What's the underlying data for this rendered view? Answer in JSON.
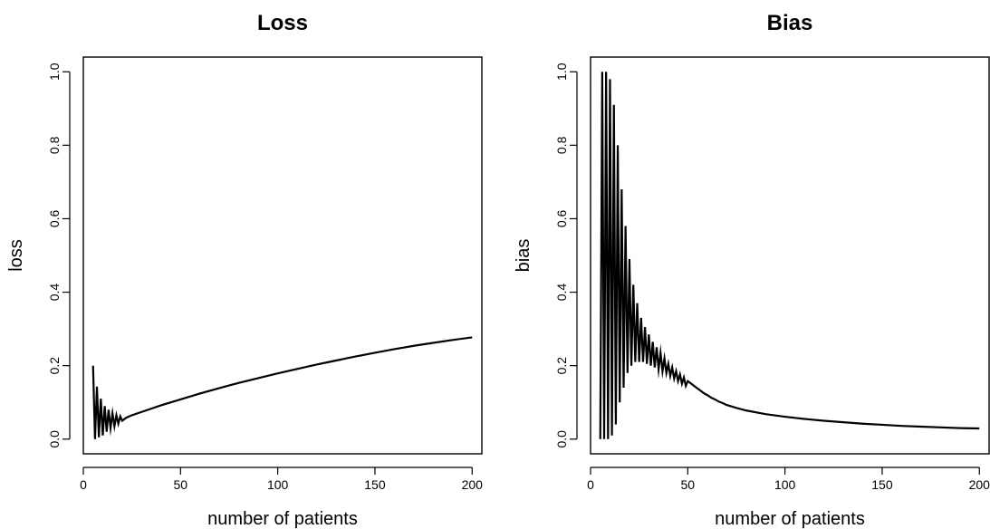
{
  "colors": {
    "background": "#ffffff",
    "line": "#000000",
    "frame": "#000000"
  },
  "chart_data": [
    {
      "type": "line",
      "title": "Loss",
      "xlabel": "number of patients",
      "ylabel": "loss",
      "xlim": [
        0,
        205
      ],
      "ylim": [
        0,
        1.0
      ],
      "xticks": [
        0,
        50,
        100,
        150,
        200
      ],
      "yticks": [
        0.0,
        0.2,
        0.4,
        0.6,
        0.8,
        1.0
      ],
      "xtick_labels": [
        "0",
        "50",
        "100",
        "150",
        "200"
      ],
      "ytick_labels": [
        "0.0",
        "0.2",
        "0.4",
        "0.6",
        "0.8",
        "1.0"
      ],
      "grid": false,
      "legend": "none",
      "series": [
        {
          "x": [
            5,
            6,
            7,
            8,
            9,
            10,
            11,
            12,
            13,
            14,
            15,
            16,
            17,
            18,
            19,
            20,
            22,
            25,
            30,
            40,
            50,
            60,
            70,
            80,
            90,
            100,
            110,
            120,
            130,
            140,
            150,
            160,
            170,
            180,
            190,
            200
          ],
          "y": [
            0.2,
            0.0,
            0.143,
            0.005,
            0.11,
            0.01,
            0.09,
            0.02,
            0.08,
            0.03,
            0.07,
            0.035,
            0.065,
            0.042,
            0.062,
            0.05,
            0.058,
            0.065,
            0.074,
            0.092,
            0.108,
            0.124,
            0.139,
            0.153,
            0.166,
            0.179,
            0.191,
            0.203,
            0.214,
            0.225,
            0.235,
            0.245,
            0.254,
            0.262,
            0.27,
            0.277
          ]
        }
      ]
    },
    {
      "type": "line",
      "title": "Bias",
      "xlabel": "number of patients",
      "ylabel": "bias",
      "xlim": [
        0,
        205
      ],
      "ylim": [
        0,
        1.0
      ],
      "xticks": [
        0,
        50,
        100,
        150,
        200
      ],
      "yticks": [
        0.0,
        0.2,
        0.4,
        0.6,
        0.8,
        1.0
      ],
      "xtick_labels": [
        "0",
        "50",
        "100",
        "150",
        "200"
      ],
      "ytick_labels": [
        "0.0",
        "0.2",
        "0.4",
        "0.6",
        "0.8",
        "1.0"
      ],
      "grid": false,
      "legend": "none",
      "series": [
        {
          "x": [
            5,
            6,
            7,
            8,
            9,
            10,
            11,
            12,
            13,
            14,
            15,
            16,
            17,
            18,
            19,
            20,
            21,
            22,
            23,
            24,
            25,
            26,
            27,
            28,
            29,
            30,
            31,
            32,
            33,
            34,
            35,
            36,
            37,
            38,
            39,
            40,
            41,
            42,
            43,
            44,
            45,
            46,
            47,
            48,
            49,
            50,
            52,
            54,
            56,
            58,
            60,
            62,
            64,
            66,
            68,
            70,
            75,
            80,
            90,
            100,
            110,
            120,
            130,
            140,
            150,
            160,
            170,
            180,
            190,
            200
          ],
          "y": [
            0.0,
            1.0,
            0.0,
            1.0,
            0.0,
            0.98,
            0.01,
            0.91,
            0.04,
            0.8,
            0.1,
            0.68,
            0.14,
            0.58,
            0.18,
            0.49,
            0.2,
            0.42,
            0.21,
            0.37,
            0.21,
            0.33,
            0.21,
            0.305,
            0.205,
            0.285,
            0.2,
            0.265,
            0.195,
            0.25,
            0.19,
            0.235,
            0.185,
            0.22,
            0.18,
            0.205,
            0.172,
            0.195,
            0.165,
            0.185,
            0.158,
            0.176,
            0.151,
            0.168,
            0.145,
            0.158,
            0.15,
            0.142,
            0.134,
            0.126,
            0.12,
            0.113,
            0.108,
            0.102,
            0.098,
            0.093,
            0.085,
            0.078,
            0.068,
            0.061,
            0.055,
            0.05,
            0.046,
            0.042,
            0.039,
            0.036,
            0.034,
            0.032,
            0.03,
            0.029
          ]
        }
      ]
    }
  ]
}
